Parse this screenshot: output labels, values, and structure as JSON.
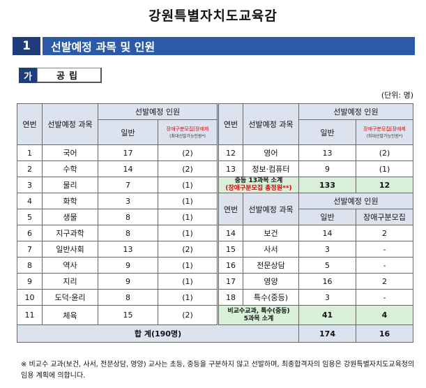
{
  "title": "강원특별자치도교육감",
  "section": {
    "number": "1",
    "title": "선발예정 과목 및 인원"
  },
  "subsection": {
    "tag": "가",
    "label": "공립"
  },
  "unit": "(단위: 명)",
  "headers": {
    "no": "연번",
    "subject": "선발예정 과목",
    "planned": "선발예정 인원",
    "general": "일반",
    "disabled_left": "장애구분모집[장애제",
    "disabled_left_note": "(최대선발가능인원*)",
    "disabled_right": "장애구분모집[장애제",
    "disabled_right_note": "(최대선발가능인원*)",
    "disabled_plain": "장애구분모집"
  },
  "left_rows": [
    {
      "no": "1",
      "subject": "국어",
      "general": "17",
      "disabled": "(2)"
    },
    {
      "no": "2",
      "subject": "수학",
      "general": "14",
      "disabled": "(2)"
    },
    {
      "no": "3",
      "subject": "물리",
      "general": "7",
      "disabled": "(1)"
    },
    {
      "no": "4",
      "subject": "화학",
      "general": "3",
      "disabled": "(1)"
    },
    {
      "no": "5",
      "subject": "생물",
      "general": "8",
      "disabled": "(1)"
    },
    {
      "no": "6",
      "subject": "지구과학",
      "general": "8",
      "disabled": "(1)"
    },
    {
      "no": "7",
      "subject": "일반사회",
      "general": "13",
      "disabled": "(2)"
    },
    {
      "no": "8",
      "subject": "역사",
      "general": "9",
      "disabled": "(1)"
    },
    {
      "no": "9",
      "subject": "지리",
      "general": "9",
      "disabled": "(1)"
    },
    {
      "no": "10",
      "subject": "도덕·윤리",
      "general": "8",
      "disabled": "(1)"
    },
    {
      "no": "11",
      "subject": "체육",
      "general": "15",
      "disabled": "(2)"
    }
  ],
  "right_top_rows": [
    {
      "no": "12",
      "subject": "영어",
      "general": "13",
      "disabled": "(2)"
    },
    {
      "no": "13",
      "subject": "정보·컴퓨터",
      "general": "9",
      "disabled": "(1)"
    }
  ],
  "subtotal1": {
    "label": "중등 13과목 소계",
    "note": "(장애구분모집 총정원**)",
    "general": "133",
    "disabled": "12"
  },
  "right_bottom_rows": [
    {
      "no": "14",
      "subject": "보건",
      "general": "14",
      "disabled": "2"
    },
    {
      "no": "15",
      "subject": "사서",
      "general": "3",
      "disabled": "-"
    },
    {
      "no": "16",
      "subject": "전문상담",
      "general": "5",
      "disabled": "-"
    },
    {
      "no": "17",
      "subject": "영양",
      "general": "16",
      "disabled": "2"
    },
    {
      "no": "18",
      "subject": "특수(중등)",
      "general": "3",
      "disabled": "-"
    }
  ],
  "subtotal2": {
    "label": "비교수교과, 특수(중등)",
    "label2": "5과목 소계",
    "general": "41",
    "disabled": "4"
  },
  "total": {
    "label": "합 계(190명)",
    "general": "174",
    "disabled": "16"
  },
  "note": "※ 비교수 교과(보건, 사서, 전문상담, 영양) 교사는 초등, 중등을 구분하지 않고 선발하며, 최종합격자의 임용은 강원특별자치도교육청의 임용 계획에 의합니다."
}
